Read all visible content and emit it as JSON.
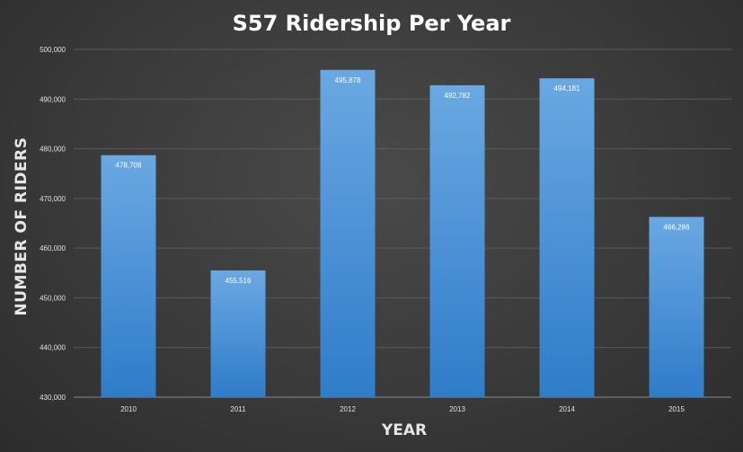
{
  "chart_data": {
    "type": "bar",
    "title": "S57 Ridership Per Year",
    "xlabel": "YEAR",
    "ylabel": "NUMBER OF RIDERS",
    "categories": [
      "2010",
      "2011",
      "2012",
      "2013",
      "2014",
      "2015"
    ],
    "values": [
      478708,
      455516,
      495878,
      492782,
      494181,
      466286
    ],
    "data_labels": [
      "478,708",
      "455,516",
      "495,878",
      "492,782",
      "494,181",
      "466,286"
    ],
    "ylim": [
      430000,
      500000
    ],
    "yticks": [
      430000,
      440000,
      450000,
      460000,
      470000,
      480000,
      490000,
      500000
    ],
    "ytick_labels": [
      "430,000",
      "440,000",
      "450,000",
      "460,000",
      "470,000",
      "480,000",
      "490,000",
      "500,000"
    ],
    "grid": true,
    "legend": "none",
    "colors": {
      "bar_top": "#6aa8e2",
      "bar_bottom": "#2f7cc9",
      "text": "#ffffff",
      "grid": "#5a5a5a"
    }
  }
}
